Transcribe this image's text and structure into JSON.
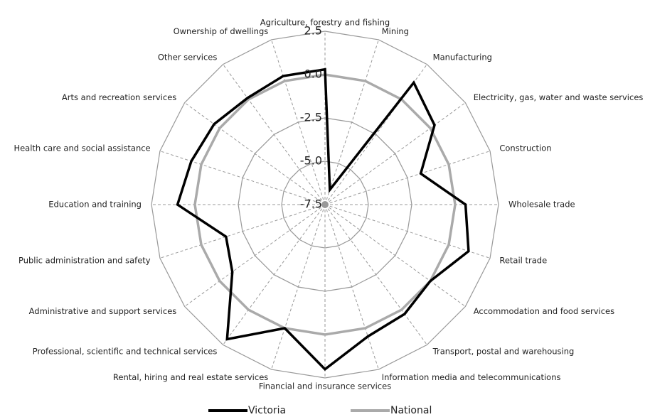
{
  "chart_data": {
    "type": "radar",
    "categories": [
      "Agriculture, forestry and fishing",
      "Mining",
      "Manufacturing",
      "Electricity, gas, water and waste services",
      "Construction",
      "Wholesale trade",
      "Retail trade",
      "Accommodation and food services",
      "Transport, postal and warehousing",
      "Information media and telecommunications",
      "Financial and insurance services",
      "Rental, hiring and real estate services",
      "Professional, scientific and technical services",
      "Administrative and support services",
      "Public administration and safety",
      "Education and training",
      "Health care and social assistance",
      "Arts and recreation services",
      "Other services",
      "Ownership of dwellings"
    ],
    "series": [
      {
        "name": "Victoria",
        "color": "#000000",
        "values": [
          0.3,
          -6.6,
          1.2,
          0.3,
          -1.7,
          0.6,
          1.2,
          0.0,
          0.3,
          0.5,
          2.0,
          0.0,
          2.1,
          -0.9,
          -1.5,
          1.0,
          0.6,
          0.4,
          0.1,
          0.3
        ]
      },
      {
        "name": "National",
        "color": "#aaaaaa",
        "values": [
          0,
          0,
          0,
          0,
          0,
          0,
          0,
          0,
          0,
          0,
          0,
          0,
          0,
          0,
          0,
          0,
          0,
          0,
          0,
          0
        ]
      }
    ],
    "ylim": [
      -7.5,
      2.5
    ],
    "yticks": [
      -7.5,
      {
        "value": -5,
        "label": "-5.0"
      },
      -2.5,
      {
        "value": 0,
        "label": "0.0"
      },
      2.5
    ],
    "grid": true,
    "legend": "bottom"
  }
}
